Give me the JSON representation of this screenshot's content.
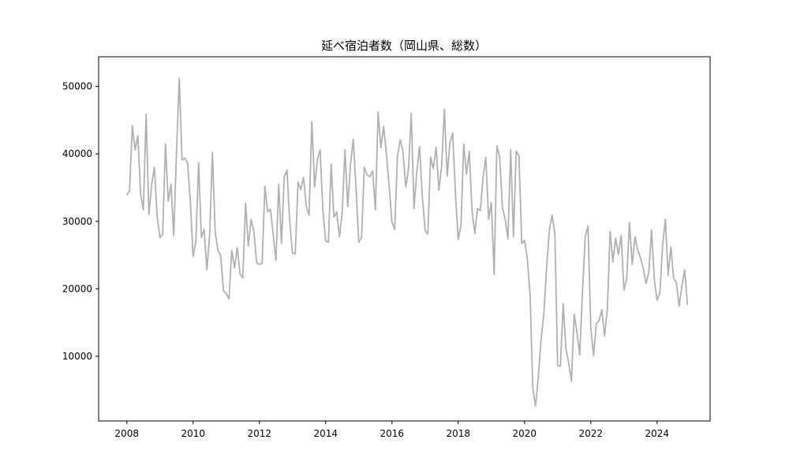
{
  "chart_data": {
    "type": "line",
    "title": "延べ宿泊者数（岡山県、総数）",
    "xlabel": "",
    "ylabel": "",
    "xlim": [
      2007.15,
      2025.6
    ],
    "ylim": [
      400,
      54400
    ],
    "grid": false,
    "legend": "none",
    "x_ticks": [
      2008,
      2010,
      2012,
      2014,
      2016,
      2018,
      2020,
      2022,
      2024
    ],
    "x_tick_labels": [
      "2008",
      "2010",
      "2012",
      "2014",
      "2016",
      "2018",
      "2020",
      "2022",
      "2024"
    ],
    "y_ticks": [
      10000,
      20000,
      30000,
      40000,
      50000
    ],
    "y_tick_labels": [
      "10000",
      "20000",
      "30000",
      "40000",
      "50000"
    ],
    "color": "#b0b0b0",
    "series": [
      {
        "name": "",
        "start": "2008-01",
        "frequency": "monthly",
        "values": [
          33900,
          34500,
          44200,
          40600,
          42700,
          34000,
          31700,
          45900,
          31000,
          35500,
          38000,
          30600,
          27600,
          28100,
          41500,
          33000,
          35500,
          27900,
          40300,
          51200,
          39100,
          39400,
          38700,
          33000,
          24800,
          27000,
          38700,
          27600,
          28800,
          22800,
          28100,
          40200,
          28400,
          25700,
          24900,
          19700,
          19300,
          18500,
          25700,
          23100,
          26100,
          22200,
          21600,
          32700,
          26300,
          30300,
          28500,
          23900,
          23600,
          23800,
          35200,
          31400,
          31800,
          28100,
          24200,
          35500,
          26700,
          36600,
          37600,
          29900,
          25300,
          25200,
          35800,
          34700,
          36500,
          32200,
          30900,
          44800,
          35100,
          39100,
          40600,
          31600,
          27100,
          26900,
          38500,
          30600,
          31400,
          27700,
          31400,
          40600,
          32200,
          38400,
          42200,
          34900,
          26900,
          27600,
          38000,
          36900,
          36600,
          37500,
          31700,
          46200,
          40900,
          44100,
          39900,
          35200,
          29900,
          28800,
          39700,
          42100,
          40300,
          35100,
          37700,
          46000,
          31900,
          37400,
          41100,
          33700,
          28700,
          28100,
          39500,
          37800,
          41000,
          34600,
          38200,
          46600,
          36700,
          41700,
          43100,
          34000,
          27300,
          29400,
          41500,
          37000,
          40400,
          31600,
          28200,
          31900,
          31600,
          36500,
          39500,
          30300,
          32800,
          22100,
          41200,
          39600,
          32100,
          30300,
          27400,
          40600,
          27700,
          40400,
          39700,
          26700,
          27200,
          24500,
          19400,
          5300,
          2600,
          7000,
          12400,
          16300,
          23100,
          28700,
          30900,
          28200,
          8600,
          8500,
          17800,
          11100,
          9000,
          6300,
          16200,
          13500,
          10200,
          19600,
          27800,
          29300,
          14300,
          10100,
          14800,
          15300,
          16900,
          13000,
          17000,
          28500,
          24000,
          27500,
          25100,
          27900,
          19800,
          21500,
          29800,
          23600,
          27700,
          25700,
          24600,
          23000,
          20800,
          22400,
          28700,
          21400,
          18300,
          19300,
          26400,
          30300,
          22000,
          26200,
          21600,
          20900,
          17400,
          20500,
          22800,
          17600
        ]
      }
    ]
  }
}
